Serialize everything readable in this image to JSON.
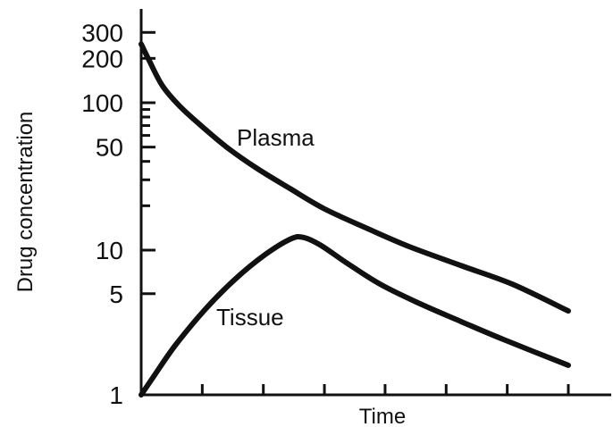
{
  "chart_data": {
    "type": "line",
    "title": "",
    "xlabel": "Time",
    "ylabel": "Drug concentration",
    "yscale": "log",
    "ylim": [
      1,
      400
    ],
    "xlim": [
      0,
      10
    ],
    "grid": false,
    "legend": "none",
    "y_ticks": [
      {
        "value": 300,
        "label": "300"
      },
      {
        "value": 200,
        "label": "200"
      },
      {
        "value": 100,
        "label": "100"
      },
      {
        "value": 50,
        "label": "50"
      },
      {
        "value": 10,
        "label": "10"
      },
      {
        "value": 5,
        "label": "5"
      },
      {
        "value": 1,
        "label": "1"
      }
    ],
    "y_minor_ticks": [
      20,
      30,
      40,
      60,
      70,
      80,
      90
    ],
    "x_ticks": [
      0,
      1.43,
      2.86,
      4.29,
      5.71,
      7.14,
      8.57,
      10
    ],
    "series": [
      {
        "name": "Plasma",
        "color": "#111111",
        "x": [
          0,
          0.2,
          0.5,
          0.9,
          1.4,
          2,
          2.7,
          3.5,
          4.3,
          5.3,
          6.3,
          7.5,
          8.7,
          10
        ],
        "y": [
          250,
          190,
          130,
          95,
          70,
          50,
          36,
          26,
          19,
          14,
          10.5,
          7.8,
          5.8,
          3.8
        ]
      },
      {
        "name": "Tissue",
        "color": "#111111",
        "x": [
          0,
          0.3,
          0.8,
          1.5,
          2.2,
          2.9,
          3.5,
          3.8,
          4.2,
          4.8,
          5.6,
          6.5,
          7.5,
          8.5,
          10
        ],
        "y": [
          1,
          1.35,
          2.2,
          3.9,
          6.3,
          9.3,
          11.9,
          12.2,
          10.8,
          8.2,
          5.8,
          4.3,
          3.2,
          2.4,
          1.6
        ]
      }
    ]
  }
}
